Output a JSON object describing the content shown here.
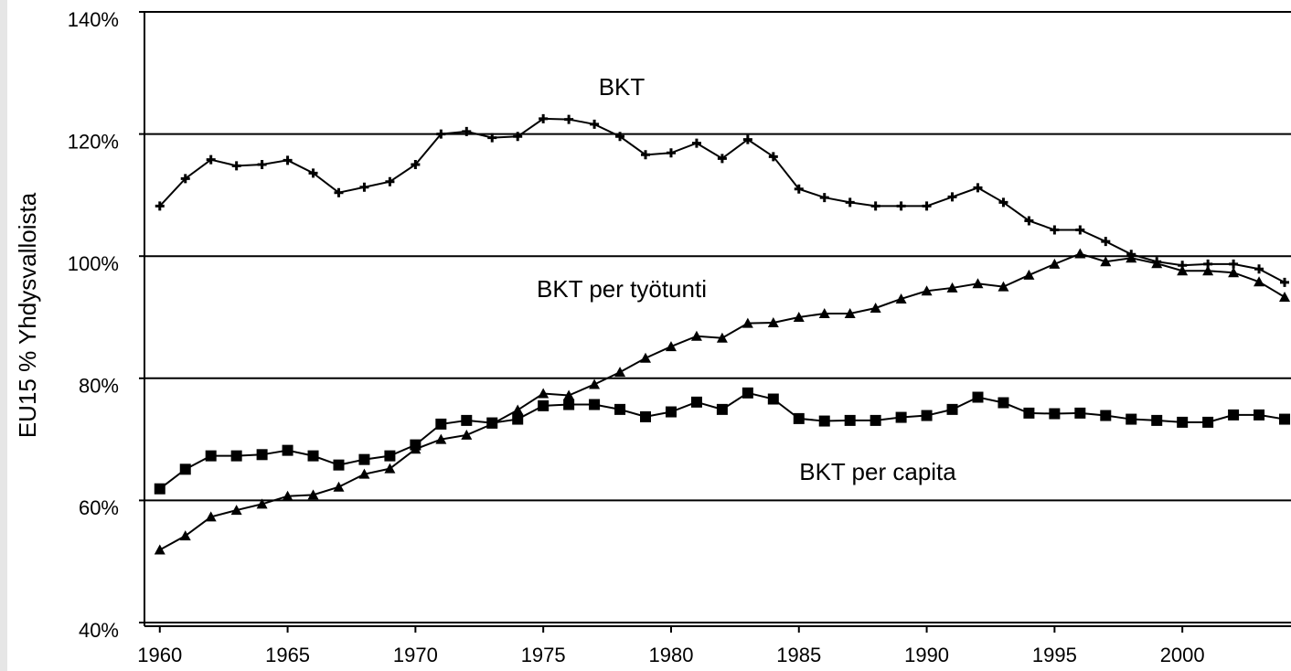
{
  "chart_data": {
    "type": "line",
    "ylabel": "EU15 % Yhdysvalloista",
    "annotations": [
      "BKT",
      "BKT per työtunti",
      "BKT per capita"
    ],
    "x": [
      1960,
      1961,
      1962,
      1963,
      1964,
      1965,
      1966,
      1967,
      1968,
      1969,
      1970,
      1971,
      1972,
      1973,
      1974,
      1975,
      1976,
      1977,
      1978,
      1979,
      1980,
      1981,
      1982,
      1983,
      1984,
      1985,
      1986,
      1987,
      1988,
      1989,
      1990,
      1991,
      1992,
      1993,
      1994,
      1995,
      1996,
      1997,
      1998,
      1999,
      2000,
      2001,
      2002,
      2003,
      2004
    ],
    "series": [
      {
        "name": "BKT",
        "color": "#000000",
        "marker": "cross",
        "values": [
          108.2,
          112.7,
          115.8,
          114.8,
          115,
          115.7,
          113.6,
          110.4,
          111.3,
          112.2,
          115,
          120,
          120.4,
          119.4,
          119.6,
          122.5,
          122.4,
          121.6,
          119.6,
          116.6,
          116.9,
          118.5,
          116,
          119.1,
          116.3,
          111,
          109.6,
          108.8,
          108.2,
          108.2,
          108.2,
          109.7,
          111.2,
          108.8,
          105.8,
          104.3,
          104.3,
          102.4,
          100.3,
          99.1,
          98.5,
          98.7,
          98.7,
          97.9,
          95.7
        ]
      },
      {
        "name": "BKT per työtunti",
        "color": "#000000",
        "marker": "triangle",
        "values": [
          51.9,
          54.2,
          57.3,
          58.4,
          59.4,
          60.7,
          60.9,
          62.2,
          64.3,
          65.2,
          68.4,
          70,
          70.7,
          72.5,
          74.8,
          77.5,
          77.2,
          79,
          81,
          83.3,
          85.2,
          86.9,
          86.6,
          89,
          89.1,
          90,
          90.6,
          90.6,
          91.5,
          93,
          94.3,
          94.8,
          95.5,
          95,
          96.9,
          98.7,
          100.4,
          99.1,
          99.7,
          98.8,
          97.6,
          97.6,
          97.3,
          95.8,
          93.3
        ]
      },
      {
        "name": "BKT per capita",
        "color": "#000000",
        "marker": "square",
        "values": [
          61.9,
          65.1,
          67.3,
          67.3,
          67.5,
          68.2,
          67.3,
          65.8,
          66.7,
          67.3,
          69.1,
          72.5,
          73.1,
          72.7,
          73.3,
          75.5,
          75.7,
          75.7,
          74.9,
          73.7,
          74.5,
          76.1,
          74.9,
          77.6,
          76.6,
          73.4,
          73,
          73.1,
          73.1,
          73.6,
          73.9,
          74.9,
          76.9,
          76,
          74.3,
          74.2,
          74.3,
          73.9,
          73.3,
          73.1,
          72.8,
          72.8,
          74,
          74,
          73.3
        ]
      }
    ],
    "xlim": [
      1959.4,
      2004.25
    ],
    "xticks": [
      1960,
      1965,
      1970,
      1975,
      1980,
      1985,
      1990,
      1995,
      2000
    ],
    "ylim": [
      40,
      140
    ],
    "yticks": [
      {
        "value": 40,
        "label": "40%"
      },
      {
        "value": 60,
        "label": "60%"
      },
      {
        "value": 80,
        "label": "80%"
      },
      {
        "value": 100,
        "label": "100%"
      },
      {
        "value": 120,
        "label": "120%"
      },
      {
        "value": 140,
        "label": "140%"
      }
    ],
    "grid": true,
    "legend": false
  }
}
